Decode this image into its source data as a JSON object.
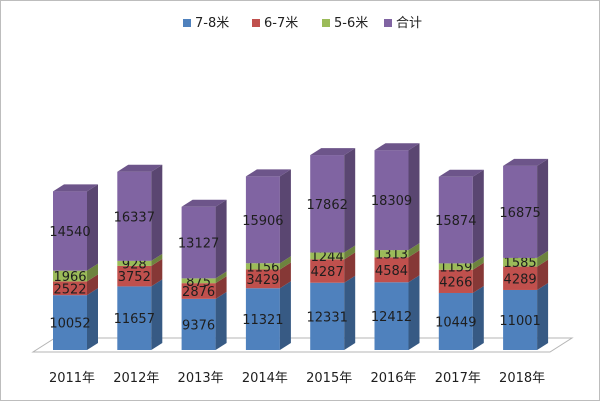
{
  "chart_data": {
    "type": "bar",
    "stacked": true,
    "style": "3d-column",
    "title": "",
    "xlabel": "",
    "ylabel": "",
    "categories": [
      "2011年",
      "2012年",
      "2013年",
      "2014年",
      "2015年",
      "2016年",
      "2017年",
      "2018年"
    ],
    "stack_order": [
      "7-8米",
      "6-7米",
      "5-6米",
      "合计"
    ],
    "series": [
      {
        "name": "7-8米",
        "color": "#4f81bd",
        "values": [
          10052,
          11657,
          9376,
          11321,
          12331,
          12412,
          10449,
          11001
        ]
      },
      {
        "name": "6-7米",
        "color": "#c0504d",
        "values": [
          2522,
          3752,
          2876,
          3429,
          4287,
          4584,
          4266,
          4289
        ]
      },
      {
        "name": "5-6米",
        "color": "#9bbb59",
        "values": [
          1966,
          928,
          875,
          1156,
          1244,
          1313,
          1159,
          1585
        ]
      },
      {
        "name": "合计",
        "color": "#8064a2",
        "values": [
          14540,
          16337,
          13127,
          15906,
          17862,
          18309,
          15874,
          16875
        ]
      }
    ],
    "legend": {
      "position": "top",
      "items": [
        "7-8米",
        "6-7米",
        "5-6米",
        "合计"
      ]
    },
    "grid": false,
    "axis_ticks_visible": false
  }
}
